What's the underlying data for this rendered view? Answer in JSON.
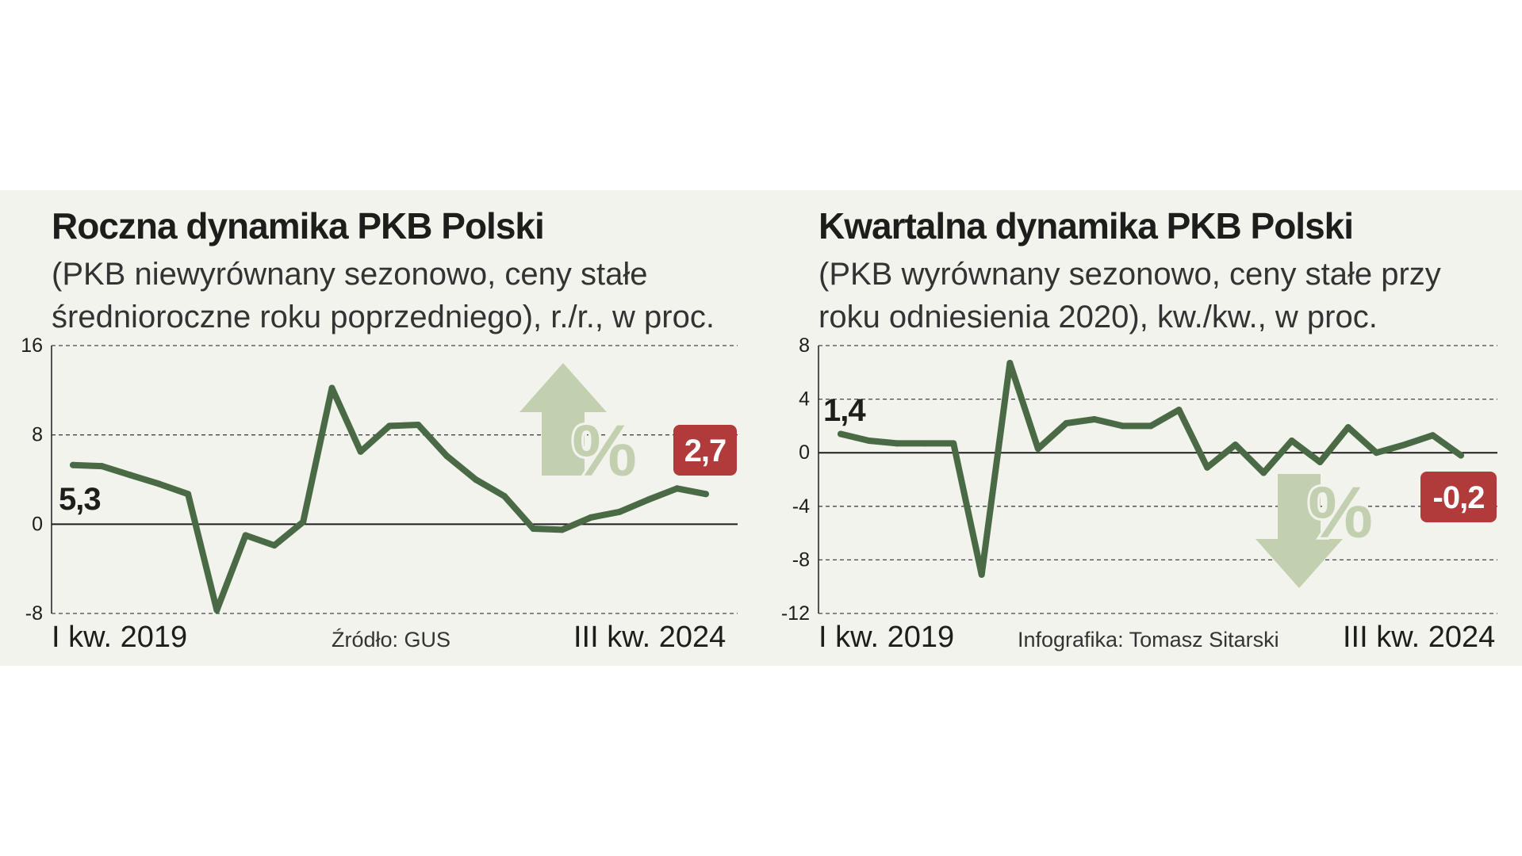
{
  "source_label": "Źródło: GUS",
  "credit_label": "Infografika: Tomasz Sitarski",
  "colors": {
    "line": "#4a6a46",
    "arrow": "#c3d0b0",
    "badge": "#b13a3a",
    "background": "#f3f3ee"
  },
  "chart_data": [
    {
      "type": "line",
      "title": "Roczna dynamika PKB Polski",
      "subtitle_line1": "(PKB niewyrównany sezonowo, ceny stałe",
      "subtitle_line2": "średnioroczne roku poprzedniego), r./r., w proc.",
      "x_start_label": "I kw. 2019",
      "x_end_label": "III kw. 2024",
      "ylim": [
        -8,
        16
      ],
      "yticks": [
        16,
        8,
        0,
        -8
      ],
      "ytick_labels": [
        "16",
        "8",
        "0",
        "-8"
      ],
      "values": [
        5.3,
        5.2,
        4.4,
        3.6,
        2.7,
        -7.7,
        -1.0,
        -1.9,
        0.2,
        12.2,
        6.5,
        8.8,
        8.9,
        6.1,
        4.0,
        2.5,
        -0.4,
        -0.5,
        0.6,
        1.1,
        2.2,
        3.2,
        2.7
      ],
      "first_label": "5,3",
      "last_label": "2,7",
      "arrow_direction": "up",
      "arrow_symbol": "%"
    },
    {
      "type": "line",
      "title": "Kwartalna dynamika PKB Polski",
      "subtitle_line1": "(PKB wyrównany sezonowo, ceny stałe przy",
      "subtitle_line2": "roku odniesienia 2020), kw./kw., w proc.",
      "x_start_label": "I kw. 2019",
      "x_end_label": "III kw. 2024",
      "ylim": [
        -12,
        8
      ],
      "yticks": [
        8,
        4,
        0,
        -4,
        -8,
        -12
      ],
      "ytick_labels": [
        "8",
        "4",
        "0",
        "-4",
        "-8",
        "-12"
      ],
      "values": [
        1.4,
        0.9,
        0.7,
        0.7,
        0.7,
        -9.1,
        6.7,
        0.3,
        2.2,
        2.5,
        2.0,
        2.0,
        3.2,
        -1.1,
        0.6,
        -1.5,
        0.9,
        -0.7,
        1.9,
        0.0,
        0.6,
        1.3,
        -0.2
      ],
      "first_label": "1,4",
      "last_label": "-0,2",
      "arrow_direction": "down",
      "arrow_symbol": "%"
    }
  ]
}
